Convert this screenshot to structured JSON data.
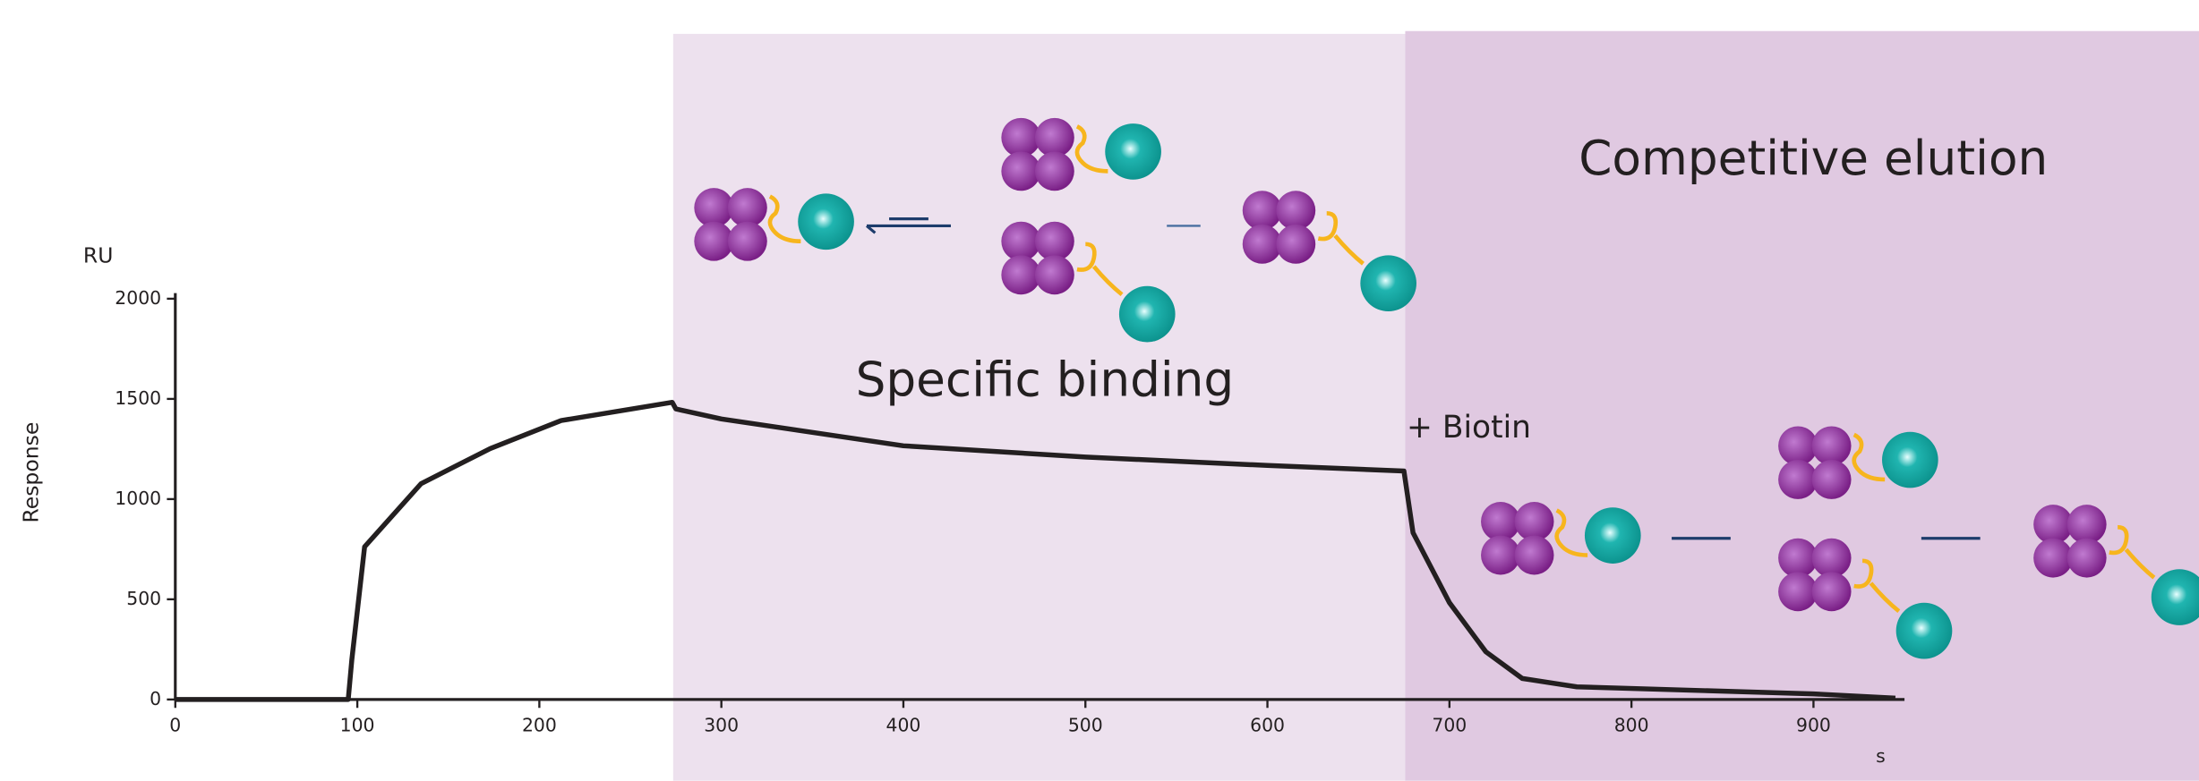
{
  "chart_data": {
    "type": "line",
    "y_unit": "RU",
    "ylabel": "Response",
    "x_unit": "s",
    "annotations": [
      "Specific binding",
      "Competitive elution",
      "+ Biotin"
    ],
    "xlim": [
      0,
      950
    ],
    "ylim": [
      0,
      2000
    ],
    "xticks": [
      0,
      100,
      200,
      300,
      400,
      500,
      600,
      700,
      800,
      900
    ],
    "yticks": [
      0,
      500,
      1000,
      1500,
      2000
    ],
    "series": [
      {
        "color": "#231f20",
        "x": [
          0,
          95,
          97,
          104,
          135,
          173,
          212,
          273,
          275,
          300,
          400,
          500,
          600,
          675,
          680,
          700,
          720,
          740,
          770,
          900,
          945
        ],
        "values": [
          0,
          0,
          200,
          762,
          1077,
          1252,
          1392,
          1483,
          1450,
          1400,
          1266,
          1210,
          1168,
          1140,
          832,
          483,
          238,
          105,
          63,
          28,
          7
        ]
      }
    ]
  }
}
